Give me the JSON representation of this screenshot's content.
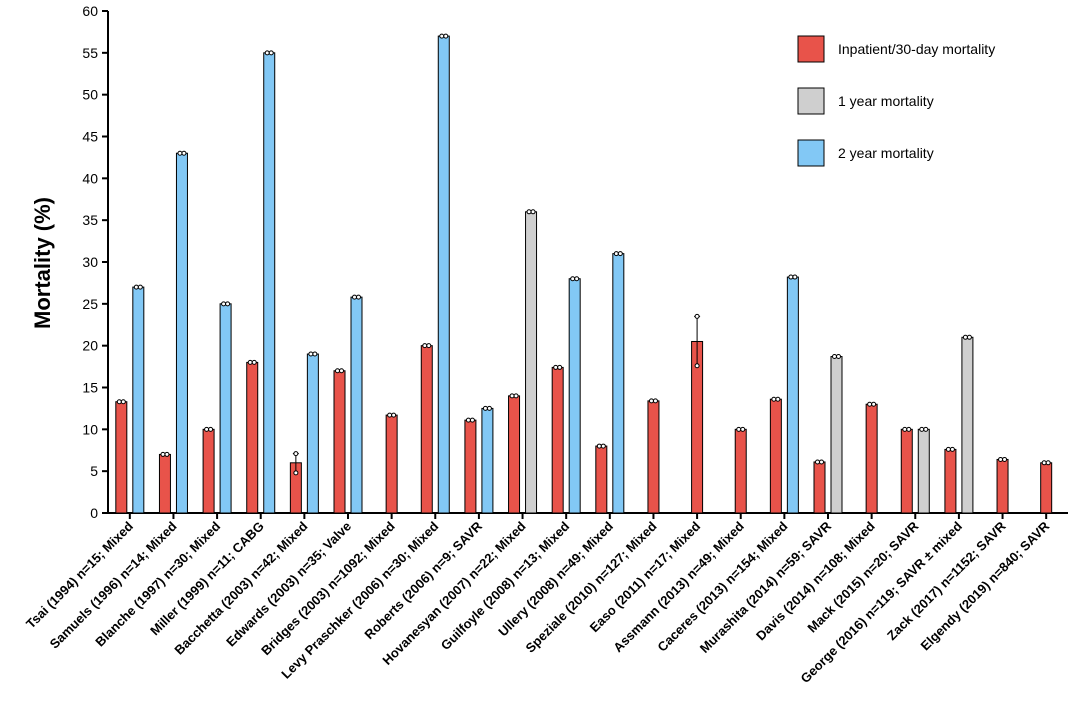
{
  "chart_data": {
    "type": "bar",
    "title": "",
    "xlabel": "",
    "ylabel": "Mortality (%)",
    "ylim": [
      0,
      60
    ],
    "yticks": [
      0,
      5,
      10,
      15,
      20,
      25,
      30,
      35,
      40,
      45,
      50,
      55,
      60
    ],
    "grid": false,
    "legend_position": "top-right",
    "colors": {
      "Inpatient/30-day mortality": "#e8534a",
      "1 year mortality": "#cfcfcf",
      "2 year mortality": "#82c8f5",
      "axis": "#000000"
    },
    "series": [
      {
        "name": "Inpatient/30-day mortality",
        "key": "inpatient"
      },
      {
        "name": "1 year mortality",
        "key": "one_year"
      },
      {
        "name": "2 year mortality",
        "key": "two_year"
      }
    ],
    "categories": [
      "Tsai (1994) n=15; Mixed",
      "Samuels (1996) n=14; Mixed",
      "Blanche (1997) n=30; Mixed",
      "Miller (1999) n=11; CABG",
      "Bacchetta (2003) n=42; Mixed",
      "Edwards (2003) n=35; Valve",
      "Bridges (2003) n=1092; Mixed",
      "Levy Praschker (2006) n=30; Mixed",
      "Roberts (2006) n=9; SAVR",
      "Hovanesyan (2007) n=22; Mixed",
      "Guilfoyle (2008) n=13; Mixed",
      "Ullery (2008) n=49; Mixed",
      "Speziale (2010) n=127; Mixed",
      "Easo (2011) n=17; Mixed",
      "Assmann (2013) n=49; Mixed",
      "Caceres (2013) n=154; Mixed",
      "Murashita (2014) n=59; SAVR",
      "Davis (2014) n=108; Mixed",
      "Mack (2015) n=20; SAVR",
      "George (2016) n=119; SAVR ± mixed",
      "Zack (2017) n=1152; SAVR",
      "Elgendy (2019) n=840; SAVR"
    ],
    "data": [
      {
        "inpatient": 13.3,
        "one_year": null,
        "two_year": 27.0
      },
      {
        "inpatient": 7.0,
        "one_year": null,
        "two_year": 43.0
      },
      {
        "inpatient": 10.0,
        "one_year": null,
        "two_year": 25.0
      },
      {
        "inpatient": 18.0,
        "one_year": null,
        "two_year": 55.0
      },
      {
        "inpatient": 6.0,
        "inpatient_err": [
          4.8,
          7.1
        ],
        "one_year": null,
        "two_year": 19.0
      },
      {
        "inpatient": 17.0,
        "one_year": null,
        "two_year": 25.8
      },
      {
        "inpatient": 11.7,
        "one_year": null,
        "two_year": null
      },
      {
        "inpatient": 20.0,
        "one_year": null,
        "two_year": 57.0
      },
      {
        "inpatient": 11.1,
        "one_year": null,
        "two_year": 12.5
      },
      {
        "inpatient": 14.0,
        "one_year": 36.0,
        "two_year": null
      },
      {
        "inpatient": 17.4,
        "one_year": null,
        "two_year": 28.0
      },
      {
        "inpatient": 8.0,
        "one_year": null,
        "two_year": 31.0
      },
      {
        "inpatient": 13.4,
        "one_year": null,
        "two_year": null
      },
      {
        "inpatient": 20.5,
        "inpatient_err": [
          17.6,
          23.5
        ],
        "one_year": null,
        "two_year": null
      },
      {
        "inpatient": 10.0,
        "one_year": null,
        "two_year": null
      },
      {
        "inpatient": 13.6,
        "one_year": null,
        "two_year": 28.2
      },
      {
        "inpatient": 6.1,
        "one_year": 18.7,
        "two_year": null
      },
      {
        "inpatient": 13.0,
        "one_year": null,
        "two_year": null
      },
      {
        "inpatient": 10.0,
        "one_year": 10.0,
        "two_year": null
      },
      {
        "inpatient": 7.6,
        "one_year": 21.0,
        "two_year": null
      },
      {
        "inpatient": 6.4,
        "one_year": null,
        "two_year": null
      },
      {
        "inpatient": 6.0,
        "one_year": null,
        "two_year": null
      }
    ]
  }
}
